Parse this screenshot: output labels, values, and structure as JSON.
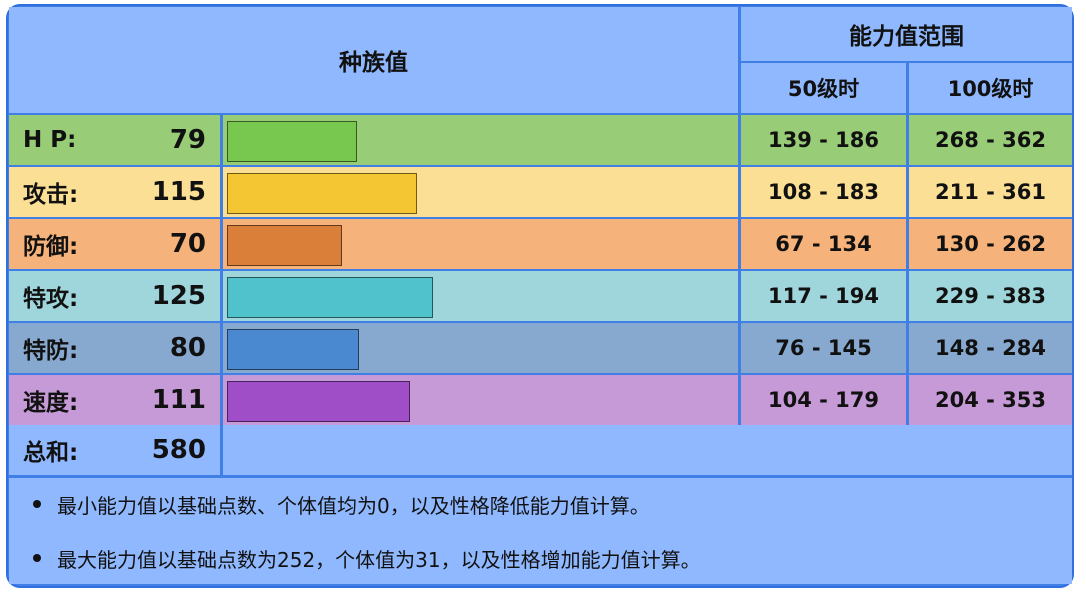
{
  "header": {
    "base_stats_title": "种族值",
    "range_title": "能力值范围",
    "lv50": "50级时",
    "lv100": "100级时"
  },
  "stats": [
    {
      "label": "H P:",
      "value": "79",
      "min50": "139 - 186",
      "max100": "268 - 362",
      "bar_fraction": 0.253,
      "bar_color": "#78c850",
      "row_color": "#98cc76",
      "range_color": "#98cc76"
    },
    {
      "label": "攻击:",
      "value": "115",
      "min50": "108 - 183",
      "max100": "211 - 361",
      "bar_fraction": 0.368,
      "bar_color": "#f5c634",
      "row_color": "#fbdf95",
      "range_color": "#fbdf95"
    },
    {
      "label": "防御:",
      "value": "70",
      "min50": "67 - 134",
      "max100": "130 - 262",
      "bar_fraction": 0.224,
      "bar_color": "#d97f3a",
      "row_color": "#f5b27a",
      "range_color": "#f5b27a"
    },
    {
      "label": "特攻:",
      "value": "125",
      "min50": "117 - 194",
      "max100": "229 - 383",
      "bar_fraction": 0.4,
      "bar_color": "#4fc2cc",
      "row_color": "#9fd6dc",
      "range_color": "#9fd6dc"
    },
    {
      "label": "特防:",
      "value": "80",
      "min50": "76 - 145",
      "max100": "148 - 284",
      "bar_fraction": 0.256,
      "bar_color": "#4a89cf",
      "row_color": "#88a9cf",
      "range_color": "#88a9cf"
    },
    {
      "label": "速度:",
      "value": "111",
      "min50": "104 - 179",
      "max100": "204 - 353",
      "bar_fraction": 0.355,
      "bar_color": "#a04ec8",
      "row_color": "#c59ad6",
      "range_color": "#c59ad6"
    }
  ],
  "total": {
    "label": "总和:",
    "value": "580",
    "row_color": "#8fb8ff"
  },
  "notes": [
    "最小能力值以基础点数、个体值均为0，以及性格降低能力值计算。",
    "最大能力值以基础点数为252，个体值为31，以及性格增加能力值计算。"
  ],
  "colors": {
    "border": "#3f7fe6",
    "header_bg": "#8fb8ff"
  }
}
